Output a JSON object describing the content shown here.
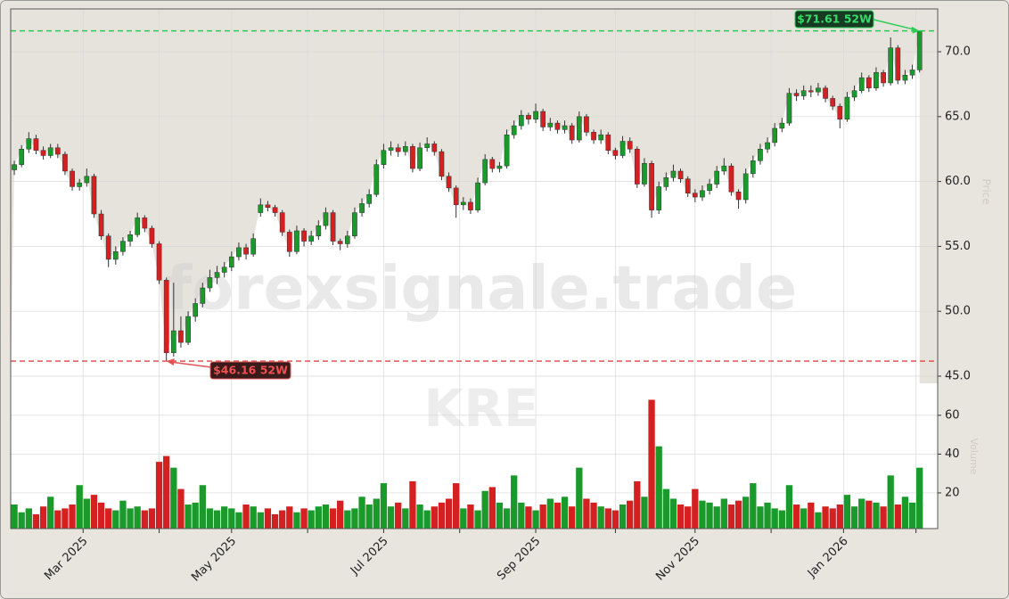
{
  "chart_data": {
    "type": "candlestick",
    "ticker": "KRE",
    "watermark": "forexsignale.trade",
    "ylabel": "Price",
    "y2label": "Volume",
    "up_color": "#1a9a2a",
    "down_color": "#d42020",
    "xlim": [
      0,
      128
    ],
    "xticks": [
      {
        "value": 10,
        "label": "Mar 2025"
      },
      {
        "value": 30.5,
        "label": "May 2025"
      },
      {
        "value": 51.5,
        "label": "Jul 2025"
      },
      {
        "value": 72.5,
        "label": "Sep 2025"
      },
      {
        "value": 94.5,
        "label": "Nov 2025"
      },
      {
        "value": 115,
        "label": "Jan 2026"
      }
    ],
    "xminorticks": [
      20.5,
      41,
      62,
      83.5,
      105,
      125
    ],
    "ylim": [
      44.45,
      73.3
    ],
    "yticks": [
      {
        "value": 45,
        "label": "45.0"
      },
      {
        "value": 50,
        "label": "50.0"
      },
      {
        "value": 55,
        "label": "55.0"
      },
      {
        "value": 60,
        "label": "60.0"
      },
      {
        "value": 65,
        "label": "65.0"
      },
      {
        "value": 70,
        "label": "70.0"
      }
    ],
    "y2lim": [
      1.6,
      76.5
    ],
    "y2ticks": [
      20,
      40,
      60
    ],
    "high_line": {
      "value": 71.61,
      "label": "$71.61 52W",
      "index": 125,
      "color": "#2ecc55"
    },
    "low_line": {
      "value": 46.16,
      "label": "$46.16 52W",
      "index": 21,
      "color": "#e05555"
    },
    "candles": [
      [
        60.9,
        61.6,
        60.5,
        61.3
      ],
      [
        61.3,
        62.8,
        61.1,
        62.5
      ],
      [
        62.5,
        63.8,
        62.2,
        63.3
      ],
      [
        63.3,
        63.6,
        62.1,
        62.4
      ],
      [
        62.4,
        62.7,
        61.7,
        62.0
      ],
      [
        62.0,
        62.9,
        61.8,
        62.6
      ],
      [
        62.6,
        62.9,
        61.8,
        62.1
      ],
      [
        62.1,
        62.3,
        60.5,
        60.8
      ],
      [
        60.8,
        61.0,
        59.3,
        59.6
      ],
      [
        59.6,
        60.2,
        59.3,
        59.9
      ],
      [
        59.9,
        61.0,
        59.6,
        60.4
      ],
      [
        60.4,
        60.6,
        57.2,
        57.5
      ],
      [
        57.5,
        57.8,
        55.5,
        55.8
      ],
      [
        55.8,
        56.0,
        53.4,
        54.0
      ],
      [
        54.0,
        55.0,
        53.6,
        54.6
      ],
      [
        54.6,
        55.7,
        54.3,
        55.4
      ],
      [
        55.4,
        56.2,
        55.0,
        55.9
      ],
      [
        55.9,
        57.6,
        55.7,
        57.2
      ],
      [
        57.2,
        57.4,
        56.1,
        56.4
      ],
      [
        56.4,
        56.6,
        54.9,
        55.2
      ],
      [
        55.2,
        55.4,
        52.1,
        52.4
      ],
      [
        52.4,
        52.6,
        46.16,
        46.8
      ],
      [
        46.8,
        52.2,
        46.5,
        48.5
      ],
      [
        48.5,
        49.6,
        47.2,
        47.6
      ],
      [
        47.6,
        50.0,
        47.4,
        49.6
      ],
      [
        49.6,
        51.0,
        49.2,
        50.6
      ],
      [
        50.6,
        52.2,
        50.3,
        51.8
      ],
      [
        51.8,
        53.2,
        51.5,
        52.6
      ],
      [
        52.6,
        53.5,
        52.1,
        53.0
      ],
      [
        53.0,
        53.8,
        52.6,
        53.4
      ],
      [
        53.4,
        54.6,
        53.1,
        54.2
      ],
      [
        54.2,
        55.3,
        53.9,
        54.9
      ],
      [
        54.9,
        55.2,
        54.0,
        54.4
      ],
      [
        54.4,
        56.0,
        54.2,
        55.6
      ],
      [
        57.6,
        58.7,
        57.3,
        58.2
      ],
      [
        58.2,
        58.5,
        57.7,
        58.0
      ],
      [
        58.0,
        58.2,
        57.3,
        57.6
      ],
      [
        57.6,
        57.8,
        55.8,
        56.1
      ],
      [
        56.1,
        56.3,
        54.2,
        54.6
      ],
      [
        54.6,
        56.6,
        54.4,
        56.2
      ],
      [
        56.2,
        56.4,
        55.0,
        55.4
      ],
      [
        55.4,
        56.2,
        55.1,
        55.8
      ],
      [
        55.8,
        57.0,
        55.5,
        56.6
      ],
      [
        56.6,
        58.0,
        56.3,
        57.6
      ],
      [
        57.6,
        57.8,
        55.1,
        55.4
      ],
      [
        55.4,
        55.6,
        54.7,
        55.2
      ],
      [
        55.2,
        56.2,
        54.9,
        55.8
      ],
      [
        55.8,
        58.0,
        55.6,
        57.6
      ],
      [
        57.6,
        58.7,
        57.3,
        58.3
      ],
      [
        58.3,
        59.4,
        58.0,
        59.0
      ],
      [
        59.0,
        61.7,
        58.8,
        61.3
      ],
      [
        61.3,
        62.9,
        61.0,
        62.4
      ],
      [
        62.4,
        63.1,
        62.0,
        62.6
      ],
      [
        62.6,
        62.9,
        61.9,
        62.3
      ],
      [
        62.3,
        63.1,
        62.0,
        62.7
      ],
      [
        62.7,
        62.9,
        60.7,
        61.0
      ],
      [
        61.0,
        63.0,
        60.8,
        62.6
      ],
      [
        62.6,
        63.4,
        62.3,
        62.9
      ],
      [
        62.9,
        63.1,
        62.0,
        62.3
      ],
      [
        62.3,
        62.5,
        60.1,
        60.4
      ],
      [
        60.4,
        60.7,
        59.2,
        59.5
      ],
      [
        59.5,
        59.7,
        57.2,
        58.2
      ],
      [
        58.2,
        58.8,
        57.8,
        58.4
      ],
      [
        58.4,
        58.7,
        57.5,
        57.8
      ],
      [
        57.8,
        60.3,
        57.6,
        59.9
      ],
      [
        59.9,
        62.1,
        59.7,
        61.7
      ],
      [
        61.7,
        61.9,
        60.7,
        61.0
      ],
      [
        61.0,
        61.5,
        60.7,
        61.2
      ],
      [
        61.2,
        64.0,
        61.0,
        63.6
      ],
      [
        63.6,
        64.7,
        63.3,
        64.3
      ],
      [
        64.3,
        65.5,
        64.0,
        65.1
      ],
      [
        65.1,
        65.3,
        64.4,
        64.8
      ],
      [
        64.8,
        66.0,
        64.5,
        65.4
      ],
      [
        65.4,
        65.6,
        63.9,
        64.2
      ],
      [
        64.2,
        64.9,
        63.9,
        64.5
      ],
      [
        64.5,
        64.7,
        63.7,
        64.0
      ],
      [
        64.0,
        64.7,
        63.7,
        64.3
      ],
      [
        64.3,
        64.5,
        62.9,
        63.2
      ],
      [
        63.2,
        65.4,
        63.0,
        65.0
      ],
      [
        65.0,
        65.2,
        63.5,
        63.8
      ],
      [
        63.8,
        64.0,
        62.9,
        63.2
      ],
      [
        63.2,
        64.0,
        62.9,
        63.6
      ],
      [
        63.6,
        63.8,
        62.1,
        62.4
      ],
      [
        62.4,
        62.6,
        61.7,
        62.0
      ],
      [
        62.0,
        63.5,
        61.8,
        63.1
      ],
      [
        63.1,
        63.4,
        62.2,
        62.5
      ],
      [
        62.5,
        62.7,
        59.5,
        59.8
      ],
      [
        59.8,
        61.8,
        59.6,
        61.4
      ],
      [
        61.4,
        61.6,
        57.2,
        57.8
      ],
      [
        57.8,
        60.0,
        57.5,
        59.6
      ],
      [
        59.6,
        60.7,
        59.3,
        60.3
      ],
      [
        60.3,
        61.3,
        60.0,
        60.8
      ],
      [
        60.8,
        61.0,
        59.9,
        60.2
      ],
      [
        60.2,
        60.4,
        58.8,
        59.1
      ],
      [
        59.1,
        59.4,
        58.4,
        58.8
      ],
      [
        58.8,
        59.7,
        58.5,
        59.3
      ],
      [
        59.3,
        60.2,
        59.0,
        59.8
      ],
      [
        59.8,
        61.2,
        59.5,
        60.8
      ],
      [
        60.8,
        61.8,
        60.5,
        61.2
      ],
      [
        61.2,
        61.4,
        58.9,
        59.2
      ],
      [
        59.2,
        59.4,
        57.9,
        58.6
      ],
      [
        58.6,
        61.0,
        58.3,
        60.6
      ],
      [
        60.6,
        62.0,
        60.3,
        61.6
      ],
      [
        61.6,
        62.9,
        61.3,
        62.5
      ],
      [
        62.5,
        63.4,
        62.2,
        63.0
      ],
      [
        63.0,
        64.5,
        62.7,
        64.1
      ],
      [
        64.1,
        64.9,
        63.8,
        64.5
      ],
      [
        64.5,
        67.2,
        64.3,
        66.8
      ],
      [
        66.8,
        67.1,
        66.2,
        66.6
      ],
      [
        66.6,
        67.4,
        66.3,
        67.0
      ],
      [
        67.0,
        67.4,
        66.5,
        66.9
      ],
      [
        66.9,
        67.6,
        66.6,
        67.2
      ],
      [
        67.2,
        67.4,
        66.1,
        66.4
      ],
      [
        66.4,
        66.6,
        65.5,
        65.8
      ],
      [
        65.8,
        66.0,
        64.1,
        64.8
      ],
      [
        64.8,
        66.9,
        64.6,
        66.5
      ],
      [
        66.5,
        67.4,
        66.2,
        67.0
      ],
      [
        67.0,
        68.4,
        66.8,
        68.0
      ],
      [
        68.0,
        68.2,
        66.9,
        67.2
      ],
      [
        67.2,
        68.8,
        67.0,
        68.4
      ],
      [
        68.4,
        68.6,
        67.3,
        67.6
      ],
      [
        67.6,
        71.1,
        67.4,
        70.3
      ],
      [
        70.3,
        70.5,
        67.5,
        67.8
      ],
      [
        67.8,
        68.6,
        67.5,
        68.2
      ],
      [
        68.2,
        69.0,
        67.9,
        68.6
      ],
      [
        68.6,
        71.61,
        68.4,
        71.6
      ]
    ],
    "volume": [
      14,
      10,
      12,
      9,
      13,
      18,
      11,
      12,
      14,
      24,
      17,
      19,
      15,
      12,
      11,
      16,
      12,
      13,
      11,
      12,
      36,
      39,
      33,
      22,
      14,
      15,
      24,
      12,
      11,
      13,
      12,
      10,
      14,
      13,
      10,
      12,
      9,
      11,
      13,
      10,
      12,
      11,
      13,
      14,
      12,
      16,
      11,
      12,
      18,
      14,
      17,
      25,
      13,
      15,
      12,
      26,
      14,
      11,
      13,
      15,
      17,
      25,
      12,
      14,
      11,
      21,
      23,
      15,
      12,
      29,
      15,
      13,
      11,
      14,
      17,
      15,
      18,
      13,
      33,
      17,
      15,
      13,
      12,
      11,
      14,
      16,
      26,
      18,
      68,
      44,
      22,
      17,
      14,
      13,
      22,
      16,
      15,
      13,
      17,
      14,
      16,
      18,
      25,
      13,
      15,
      12,
      11,
      24,
      14,
      12,
      15,
      10,
      13,
      12,
      14,
      19,
      13,
      17,
      16,
      15,
      13,
      29,
      14,
      18,
      15,
      33
    ]
  }
}
